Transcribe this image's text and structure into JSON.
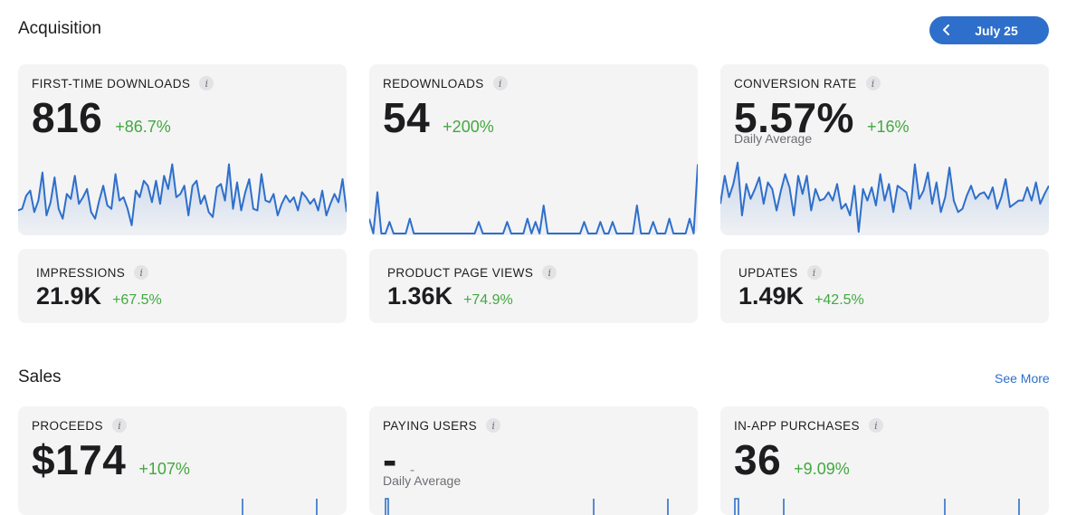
{
  "acquisition": {
    "title": "Acquisition",
    "date_button": {
      "label": "July 25"
    },
    "cards": {
      "first_time_downloads": {
        "label": "FIRST-TIME DOWNLOADS",
        "value": "816",
        "change": "+86.7%",
        "sparkline": [
          28,
          30,
          46,
          52,
          26,
          40,
          74,
          22,
          38,
          68,
          30,
          18,
          48,
          42,
          70,
          36,
          44,
          54,
          26,
          18,
          40,
          58,
          34,
          30,
          72,
          40,
          44,
          30,
          10,
          52,
          44,
          64,
          58,
          38,
          64,
          36,
          70,
          54,
          84,
          44,
          48,
          58,
          22,
          58,
          64,
          36,
          46,
          26,
          20,
          56,
          60,
          40,
          84,
          30,
          62,
          28,
          50,
          66,
          30,
          28,
          72,
          40,
          38,
          48,
          22,
          36,
          46,
          38,
          44,
          28,
          50,
          44,
          36,
          42,
          28,
          52,
          22,
          36,
          48,
          38,
          66,
          26
        ]
      },
      "redownloads": {
        "label": "REDOWNLOADS",
        "value": "54",
        "change": "+200%",
        "sparkline": [
          18,
          0,
          50,
          0,
          0,
          14,
          0,
          0,
          0,
          0,
          18,
          0,
          0,
          0,
          0,
          0,
          0,
          0,
          0,
          0,
          0,
          0,
          0,
          0,
          0,
          0,
          0,
          14,
          0,
          0,
          0,
          0,
          0,
          0,
          14,
          0,
          0,
          0,
          0,
          18,
          0,
          14,
          0,
          34,
          0,
          0,
          0,
          0,
          0,
          0,
          0,
          0,
          0,
          14,
          0,
          0,
          0,
          14,
          0,
          0,
          14,
          0,
          0,
          0,
          0,
          0,
          34,
          0,
          0,
          0,
          14,
          0,
          0,
          0,
          18,
          0,
          0,
          0,
          0,
          18,
          0,
          84
        ]
      },
      "conversion_rate": {
        "label": "CONVERSION RATE",
        "value": "5.57%",
        "change": "+16%",
        "sub_label": "Daily Average",
        "sparkline": [
          36,
          70,
          44,
          60,
          86,
          22,
          60,
          42,
          54,
          68,
          36,
          62,
          54,
          28,
          52,
          72,
          56,
          22,
          70,
          48,
          70,
          28,
          54,
          40,
          42,
          50,
          40,
          60,
          30,
          36,
          22,
          58,
          2,
          54,
          40,
          56,
          34,
          72,
          40,
          60,
          26,
          58,
          54,
          50,
          30,
          84,
          42,
          52,
          74,
          36,
          62,
          26,
          44,
          80,
          40,
          26,
          30,
          46,
          58,
          42,
          48,
          50,
          42,
          56,
          30,
          44,
          66,
          32,
          36,
          40,
          40,
          56,
          40,
          62,
          36,
          48,
          58
        ]
      },
      "impressions": {
        "label": "IMPRESSIONS",
        "value": "21.9K",
        "change": "+67.5%"
      },
      "product_page_views": {
        "label": "PRODUCT PAGE VIEWS",
        "value": "1.36K",
        "change": "+74.9%"
      },
      "updates": {
        "label": "UPDATES",
        "value": "1.49K",
        "change": "+42.5%"
      }
    }
  },
  "sales": {
    "title": "Sales",
    "see_more": "See More",
    "cards": {
      "proceeds": {
        "label": "PROCEEDS",
        "value": "$174",
        "change": "+107%"
      },
      "paying_users": {
        "label": "PAYING USERS",
        "value": "-",
        "change": "-",
        "sub_label": "Daily Average"
      },
      "in_app_purchases": {
        "label": "IN-APP PURCHASES",
        "value": "36",
        "change": "+9.09%"
      }
    }
  },
  "colors": {
    "accent": "#2e6fcb",
    "positive": "#43a83f",
    "card_bg": "#f4f4f5"
  },
  "icons": {
    "info": "info-icon",
    "back": "chevron-left-icon"
  }
}
